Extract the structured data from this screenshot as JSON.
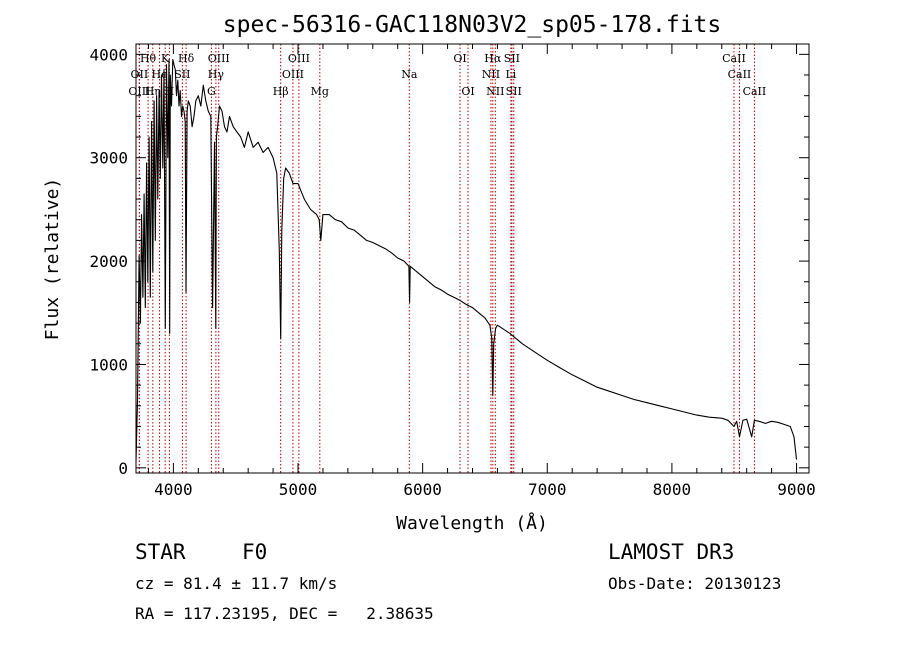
{
  "chart_data": {
    "type": "line",
    "title": "spec-56316-GAC118N03V2_sp05-178.fits",
    "xlabel": "Wavelength (Å)",
    "ylabel": "Flux (relative)",
    "xlim": [
      3700,
      9100
    ],
    "ylim": [
      -50,
      4100
    ],
    "x_ticks": [
      4000,
      5000,
      6000,
      7000,
      8000,
      9000
    ],
    "y_ticks": [
      0,
      1000,
      2000,
      3000,
      4000
    ],
    "x_tick_labels": [
      "4000",
      "5000",
      "6000",
      "7000",
      "8000",
      "9000"
    ],
    "y_tick_labels": [
      "0",
      "1000",
      "2000",
      "3000",
      "4000"
    ],
    "series": [
      {
        "name": "spectrum",
        "color": "#000000",
        "x": [
          3700,
          3712,
          3725,
          3735,
          3745,
          3755,
          3765,
          3775,
          3785,
          3795,
          3805,
          3815,
          3825,
          3835,
          3845,
          3855,
          3865,
          3875,
          3885,
          3895,
          3905,
          3915,
          3925,
          3935,
          3945,
          3955,
          3965,
          3970,
          3975,
          3985,
          3995,
          4005,
          4015,
          4025,
          4035,
          4045,
          4055,
          4065,
          4075,
          4085,
          4095,
          4101,
          4110,
          4120,
          4135,
          4150,
          4165,
          4180,
          4200,
          4220,
          4240,
          4260,
          4280,
          4300,
          4315,
          4330,
          4340,
          4345,
          4355,
          4370,
          4390,
          4410,
          4430,
          4450,
          4480,
          4510,
          4540,
          4570,
          4600,
          4640,
          4680,
          4720,
          4760,
          4800,
          4830,
          4850,
          4861,
          4870,
          4885,
          4900,
          4930,
          4960,
          5000,
          5050,
          5100,
          5150,
          5170,
          5183,
          5200,
          5250,
          5300,
          5350,
          5400,
          5450,
          5500,
          5550,
          5600,
          5650,
          5700,
          5750,
          5800,
          5850,
          5890,
          5895,
          5900,
          5950,
          6000,
          6050,
          6100,
          6150,
          6200,
          6250,
          6300,
          6350,
          6400,
          6450,
          6500,
          6540,
          6555,
          6563,
          6570,
          6585,
          6600,
          6650,
          6700,
          6750,
          6800,
          6850,
          6900,
          6950,
          7000,
          7100,
          7200,
          7300,
          7400,
          7500,
          7600,
          7700,
          7800,
          7900,
          8000,
          8100,
          8200,
          8300,
          8400,
          8450,
          8498,
          8520,
          8542,
          8570,
          8600,
          8640,
          8662,
          8700,
          8750,
          8800,
          8850,
          8900,
          8950,
          8980,
          9000
        ],
        "values": [
          60,
          650,
          2050,
          1400,
          2450,
          1650,
          2650,
          1550,
          2950,
          1800,
          3200,
          1650,
          3350,
          1900,
          3550,
          2200,
          3600,
          2600,
          3650,
          2800,
          3800,
          2900,
          3850,
          1350,
          3900,
          3000,
          3950,
          1300,
          3800,
          3500,
          3950,
          3900,
          3850,
          3600,
          3750,
          3500,
          3650,
          3400,
          3500,
          3450,
          3350,
          1700,
          3450,
          3550,
          3500,
          3300,
          3400,
          3550,
          3600,
          3500,
          3700,
          3550,
          3450,
          3400,
          1550,
          3150,
          1350,
          3200,
          3300,
          3500,
          3450,
          3300,
          3250,
          3400,
          3300,
          3250,
          3200,
          3100,
          3250,
          3100,
          3150,
          3050,
          3100,
          3000,
          2850,
          2100,
          1250,
          2300,
          2800,
          2900,
          2850,
          2750,
          2750,
          2600,
          2500,
          2450,
          2400,
          2200,
          2450,
          2450,
          2400,
          2380,
          2320,
          2300,
          2250,
          2200,
          2180,
          2150,
          2120,
          2080,
          2030,
          2000,
          1950,
          1600,
          1950,
          1900,
          1850,
          1800,
          1750,
          1720,
          1680,
          1650,
          1620,
          1580,
          1550,
          1500,
          1450,
          1380,
          1250,
          700,
          1200,
          1350,
          1380,
          1340,
          1300,
          1250,
          1200,
          1160,
          1120,
          1080,
          1040,
          970,
          900,
          840,
          780,
          740,
          700,
          660,
          630,
          600,
          570,
          540,
          510,
          490,
          480,
          460,
          400,
          450,
          300,
          460,
          470,
          300,
          460,
          450,
          430,
          450,
          440,
          420,
          400,
          300,
          80
        ]
      }
    ],
    "lines": [
      {
        "label": "Hθ",
        "wavelength": 3797,
        "row": 1
      },
      {
        "label": "OII",
        "wavelength": 3727,
        "row": 2
      },
      {
        "label": "OIII",
        "wavelength": 3727,
        "row": 3
      },
      {
        "label": "K",
        "wavelength": 3934,
        "row": 1
      },
      {
        "label": "He",
        "wavelength": 3889,
        "row": 2
      },
      {
        "label": "Hη",
        "wavelength": 3835,
        "row": 3
      },
      {
        "label": "Hδ",
        "wavelength": 4102,
        "row": 1
      },
      {
        "label": "SII",
        "wavelength": 4072,
        "row": 2
      },
      {
        "label": "H",
        "wavelength": 3968,
        "row": 3
      },
      {
        "label": "OIII",
        "wavelength": 4364,
        "row": 1
      },
      {
        "label": "Hγ",
        "wavelength": 4341,
        "row": 2
      },
      {
        "label": "G",
        "wavelength": 4305,
        "row": 3
      },
      {
        "label": "OIII",
        "wavelength": 5007,
        "row": 1
      },
      {
        "label": "OIII",
        "wavelength": 4959,
        "row": 2
      },
      {
        "label": "Hβ",
        "wavelength": 4861,
        "row": 3
      },
      {
        "label": "Mg",
        "wavelength": 5175,
        "row": 3
      },
      {
        "label": "Na",
        "wavelength": 5893,
        "row": 2
      },
      {
        "label": "OI",
        "wavelength": 6300,
        "row": 1
      },
      {
        "label": "OI",
        "wavelength": 6364,
        "row": 3
      },
      {
        "label": "Hα",
        "wavelength": 6563,
        "row": 1
      },
      {
        "label": "NII",
        "wavelength": 6548,
        "row": 2
      },
      {
        "label": "NII",
        "wavelength": 6583,
        "row": 3
      },
      {
        "label": "SII",
        "wavelength": 6716,
        "row": 1
      },
      {
        "label": "Li",
        "wavelength": 6708,
        "row": 2
      },
      {
        "label": "SII",
        "wavelength": 6731,
        "row": 3
      },
      {
        "label": "CaII",
        "wavelength": 8498,
        "row": 1
      },
      {
        "label": "CaII",
        "wavelength": 8542,
        "row": 2
      },
      {
        "label": "CaII",
        "wavelength": 8662,
        "row": 3
      }
    ]
  },
  "info": {
    "class": "STAR",
    "subclass": "F0",
    "survey": "LAMOST DR3",
    "cz": "cz = 81.4 ± 11.7 km/s",
    "obs_date": "Obs-Date: 20130123",
    "coords": "RA = 117.23195, DEC =   2.38635"
  },
  "colors": {
    "spectrum": "#000000",
    "line_marker": "#b00000",
    "text": "#000000"
  }
}
